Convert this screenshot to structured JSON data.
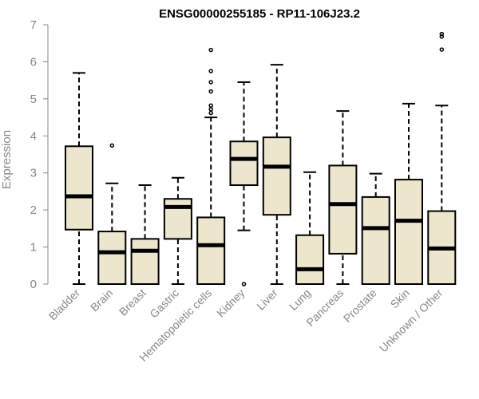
{
  "chart_data": {
    "type": "boxplot",
    "title": "ENSG00000255185 - RP11-106J23.2",
    "ylabel": "Expression",
    "xlabel": "",
    "ylim": [
      0,
      7
    ],
    "yticks": [
      "0",
      "1",
      "2",
      "3",
      "4",
      "5",
      "6",
      "7"
    ],
    "grid": false,
    "colors": {
      "box_fill": "#ede6cd",
      "box_stroke": "#000000",
      "axis": "#888888",
      "text": "#888888"
    },
    "categories": [
      "Bladder",
      "Brain",
      "Breast",
      "Gastric",
      "Hematopoietic cells",
      "Kidney",
      "Liver",
      "Lung",
      "Pancreas",
      "Prostate",
      "Skin",
      "Unknown / Other"
    ],
    "boxes": [
      {
        "min": 0.0,
        "q1": 1.47,
        "median": 2.37,
        "q3": 3.72,
        "max": 5.7,
        "outliers": []
      },
      {
        "min": 0.0,
        "q1": 0.0,
        "median": 0.86,
        "q3": 1.42,
        "max": 2.72,
        "outliers": [
          3.74
        ]
      },
      {
        "min": 0.0,
        "q1": 0.0,
        "median": 0.9,
        "q3": 1.22,
        "max": 2.67,
        "outliers": []
      },
      {
        "min": 0.0,
        "q1": 1.22,
        "median": 2.08,
        "q3": 2.3,
        "max": 2.87,
        "outliers": []
      },
      {
        "min": 0.0,
        "q1": 0.0,
        "median": 1.05,
        "q3": 1.8,
        "max": 4.5,
        "outliers": [
          4.62,
          4.72,
          4.82,
          5.2,
          5.45,
          5.75,
          6.32
        ]
      },
      {
        "min": 1.45,
        "q1": 2.67,
        "median": 3.38,
        "q3": 3.85,
        "max": 5.45,
        "outliers": [
          0.0
        ]
      },
      {
        "min": 0.0,
        "q1": 1.87,
        "median": 3.17,
        "q3": 3.96,
        "max": 5.92,
        "outliers": []
      },
      {
        "min": 0.0,
        "q1": 0.0,
        "median": 0.4,
        "q3": 1.32,
        "max": 3.02,
        "outliers": []
      },
      {
        "min": 0.0,
        "q1": 0.82,
        "median": 2.16,
        "q3": 3.2,
        "max": 4.67,
        "outliers": []
      },
      {
        "min": 0.0,
        "q1": 0.0,
        "median": 1.51,
        "q3": 2.35,
        "max": 2.98,
        "outliers": []
      },
      {
        "min": 0.0,
        "q1": 0.0,
        "median": 1.71,
        "q3": 2.82,
        "max": 4.87,
        "outliers": []
      },
      {
        "min": 0.0,
        "q1": 0.0,
        "median": 0.96,
        "q3": 1.97,
        "max": 4.82,
        "outliers": [
          6.33,
          6.68,
          6.75
        ]
      }
    ]
  }
}
